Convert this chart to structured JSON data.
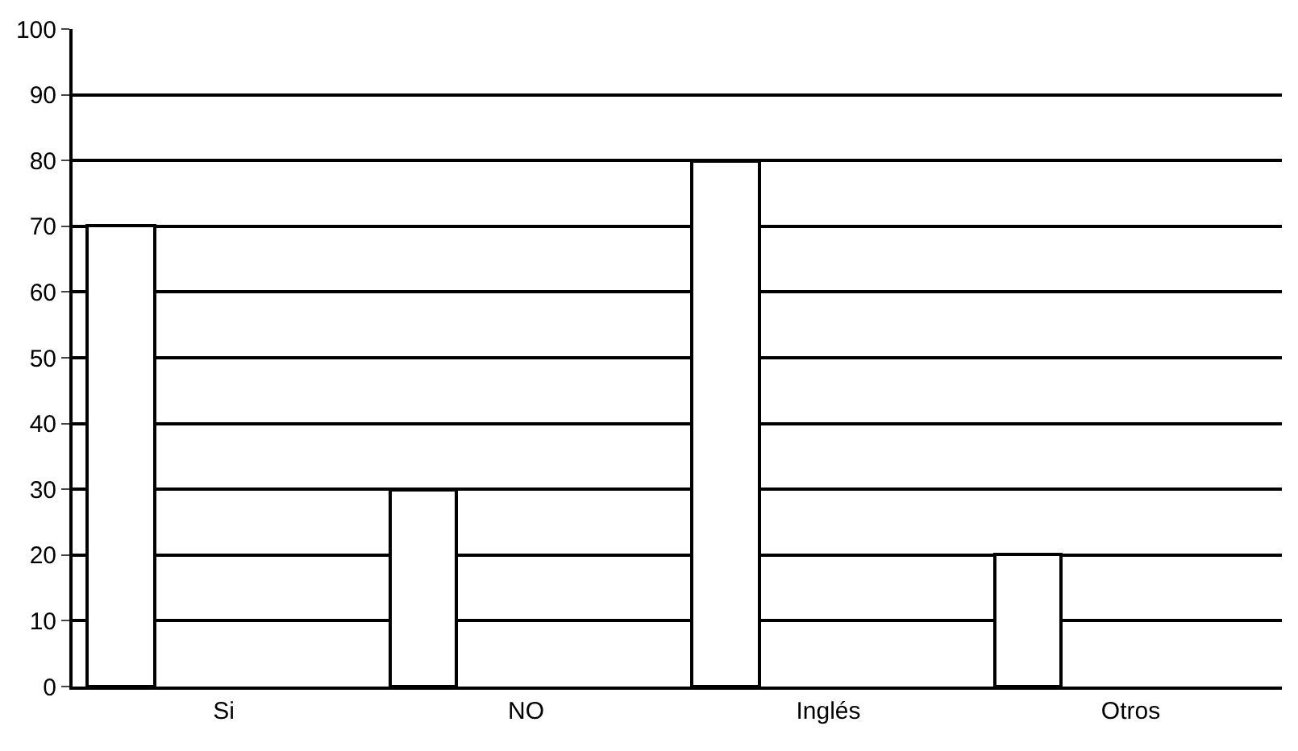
{
  "chart_data": {
    "type": "bar",
    "categories": [
      "Si",
      "NO",
      "Inglés",
      "Otros"
    ],
    "values": [
      70,
      30,
      80,
      20
    ],
    "color": "#ffffff",
    "ylim": [
      0,
      100
    ],
    "yticks": [
      0,
      10,
      20,
      30,
      40,
      50,
      60,
      70,
      80,
      90,
      100
    ],
    "grid": "y",
    "legend": false
  }
}
